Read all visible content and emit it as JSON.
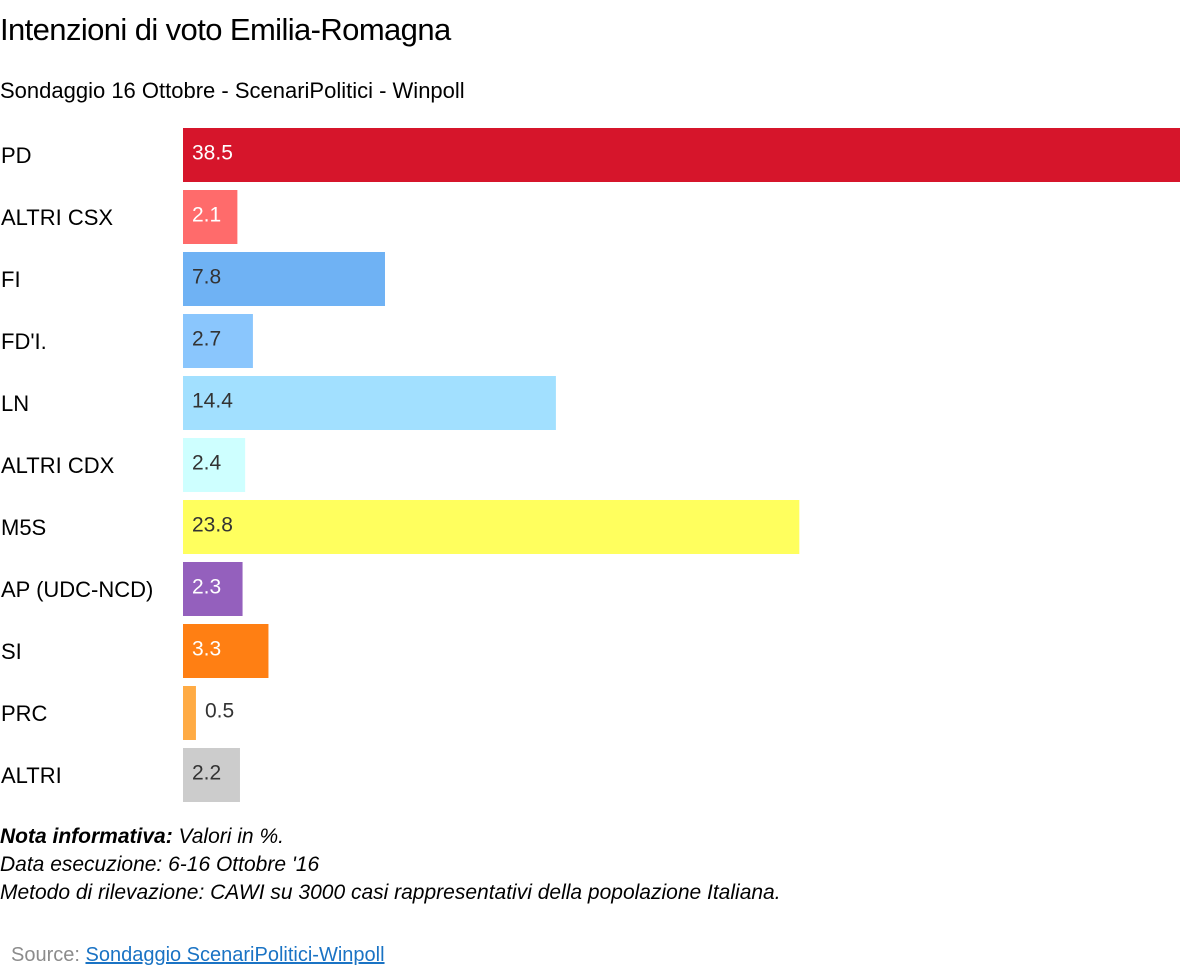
{
  "chart_data": {
    "type": "bar",
    "orientation": "horizontal",
    "title": "Intenzioni di voto Emilia-Romagna",
    "subtitle": "Sondaggio 16 Ottobre - ScenariPolitici - Winpoll",
    "categories": [
      "PD",
      "ALTRI CSX",
      "FI",
      "FD'I.",
      "LN",
      "ALTRI CDX",
      "M5S",
      "AP (UDC-NCD)",
      "SI",
      "PRC",
      "ALTRI"
    ],
    "values": [
      38.5,
      2.1,
      7.8,
      2.7,
      14.4,
      2.4,
      23.8,
      2.3,
      3.3,
      0.5,
      2.2
    ],
    "value_labels": [
      "38.5",
      "2.1",
      "7.8",
      "2.7",
      "14.4",
      "2.4",
      "23.8",
      "2.3",
      "3.3",
      "0.5",
      "2.2"
    ],
    "colors": [
      "#d6152b",
      "#ff6b6b",
      "#6fb2f4",
      "#8ac6fd",
      "#a2e0ff",
      "#ceffff",
      "#ffff5e",
      "#9460bd",
      "#ff7f13",
      "#ffab44",
      "#cccccc"
    ],
    "label_colors": [
      "#ffffff",
      "#ffffff",
      "#333333",
      "#333333",
      "#333333",
      "#333333",
      "#333333",
      "#ffffff",
      "#ffffff",
      "#333333",
      "#333333"
    ],
    "xlim": [
      0,
      38.5
    ],
    "xlabel": "",
    "ylabel": "",
    "grid": false,
    "legend": "none"
  },
  "notes": {
    "title": "Nota informativa:",
    "line1": " Valori in %.",
    "line2": "Data esecuzione: 6-16  Ottobre '16",
    "line3": "Metodo di rilevazione: CAWI su 3000 casi rappresentativi della popolazione Italiana."
  },
  "source": {
    "label": "Source: ",
    "link_text": "Sondaggio ScenariPolitici-Winpoll"
  }
}
